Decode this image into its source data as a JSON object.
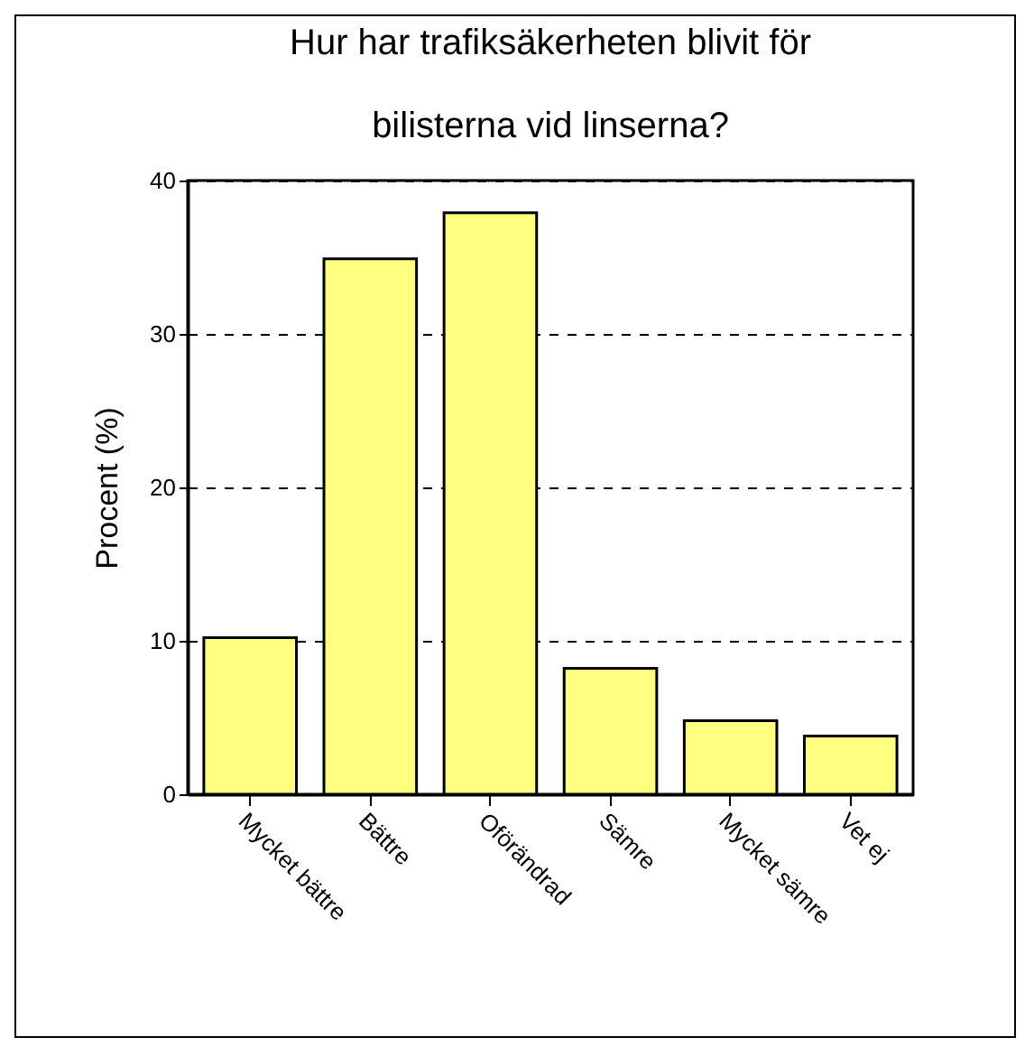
{
  "chart_data": {
    "type": "bar",
    "title": [
      "Hur har trafiksäkerheten blivit för",
      "bilisterna vid linserna?"
    ],
    "ylabel": "Procent (%)",
    "categories": [
      "Mycket bättre",
      "Bättre",
      "Oförändrad",
      "Sämre",
      "Mycket sämre",
      "Vet ej"
    ],
    "values": [
      10.2,
      34.9,
      37.9,
      8.2,
      4.8,
      3.8
    ],
    "color": "#ffff80",
    "ylim": [
      0,
      40
    ],
    "yticks": [
      0,
      10,
      20,
      30,
      40
    ],
    "grid": "y"
  }
}
